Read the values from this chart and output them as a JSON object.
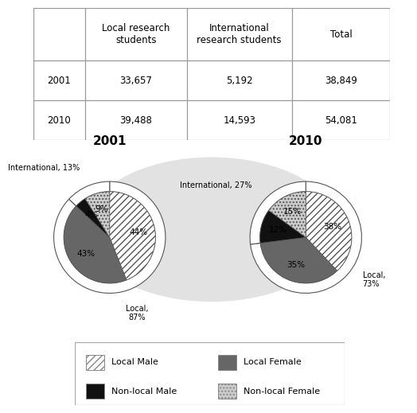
{
  "table_headers": [
    "",
    "Local research\nstudents",
    "International\nresearch students",
    "Total"
  ],
  "table_rows": [
    [
      "2001",
      "33,657",
      "5,192",
      "38,849"
    ],
    [
      "2010",
      "39,488",
      "14,593",
      "54,081"
    ]
  ],
  "pie2001": {
    "title": "2001",
    "inner_values": [
      44,
      43,
      4,
      9
    ],
    "inner_labels": [
      "44%",
      "43%",
      "4%",
      "9%"
    ],
    "inner_colors": [
      "#ffffff",
      "#666666",
      "#111111",
      "#cccccc"
    ],
    "inner_hatches": [
      "////",
      "",
      "",
      "...."
    ],
    "outer_values": [
      87,
      13
    ],
    "outer_local_label": "Local,\n87%",
    "outer_intl_label": "International, 13%",
    "startangle": 90
  },
  "pie2010": {
    "title": "2010",
    "inner_values": [
      38,
      35,
      12,
      15
    ],
    "inner_labels": [
      "38%",
      "35%",
      "12%",
      "15%"
    ],
    "inner_colors": [
      "#ffffff",
      "#666666",
      "#111111",
      "#cccccc"
    ],
    "inner_hatches": [
      "////",
      "",
      "",
      "...."
    ],
    "outer_values": [
      73,
      27
    ],
    "outer_local_label": "Local,\n73%",
    "outer_intl_label": "International, 27%",
    "startangle": 90
  },
  "legend_items": [
    {
      "label": "Local Male",
      "hatch": "////",
      "facecolor": "#ffffff",
      "edgecolor": "#888888"
    },
    {
      "label": "Local Female",
      "hatch": "",
      "facecolor": "#666666",
      "edgecolor": "#888888"
    },
    {
      "label": "Non-local Male",
      "hatch": "",
      "facecolor": "#111111",
      "edgecolor": "#888888"
    },
    {
      "label": "Non-local Female",
      "hatch": "....",
      "facecolor": "#cccccc",
      "edgecolor": "#888888"
    }
  ],
  "bg_circle_color": "#e2e2e2",
  "table_fontsize": 8.5,
  "pie_title_fontsize": 11,
  "pie_inner_label_fontsize": 7.5,
  "outer_label_fontsize": 7,
  "legend_fontsize": 8
}
